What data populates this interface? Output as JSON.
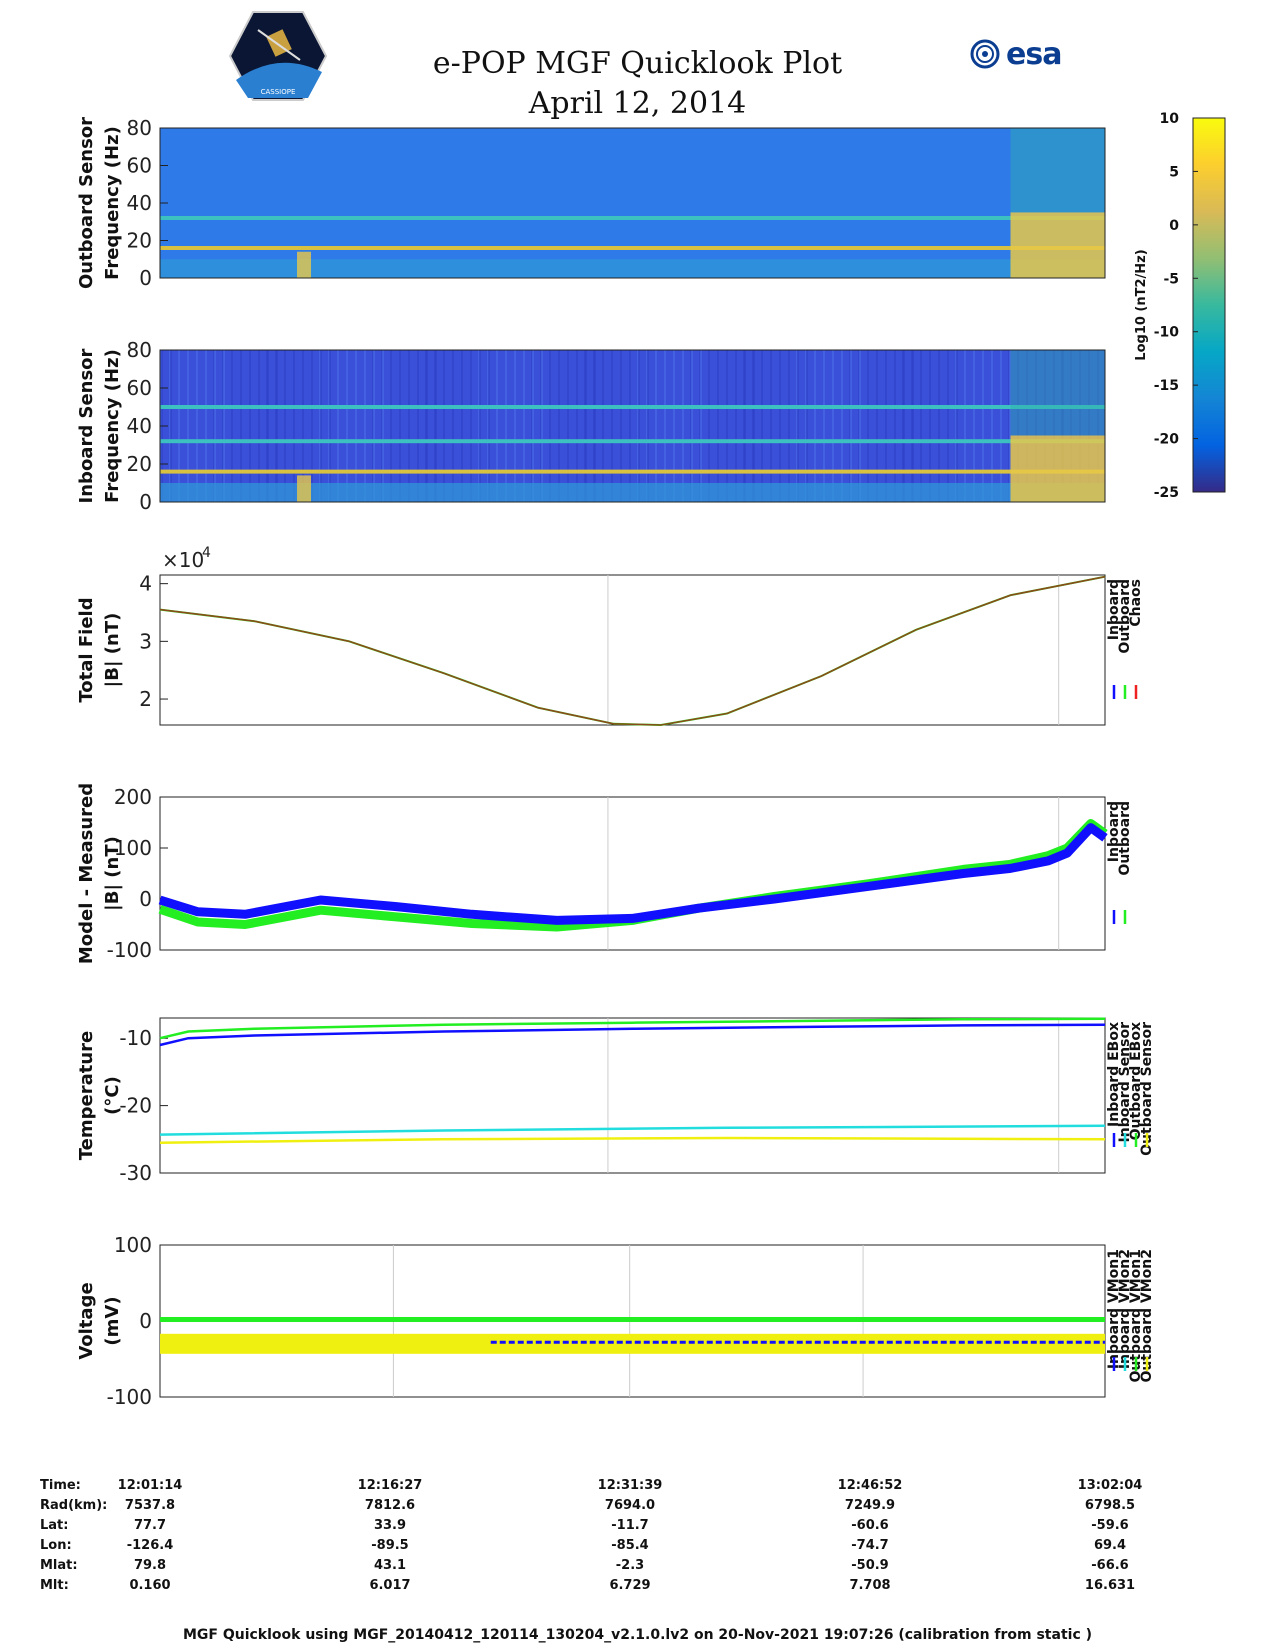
{
  "title": {
    "line1": "e-POP MGF Quicklook Plot",
    "line2": "April 12, 2014"
  },
  "logos": {
    "left": "cassiope-mission-logo",
    "left_caption": "CASSIOPE",
    "right_text": "esa"
  },
  "colorbar": {
    "label": "Log10 (nT2/Hz)",
    "ticks": [
      10,
      5,
      0,
      -5,
      -10,
      -15,
      -20,
      -25
    ],
    "range": [
      -25,
      10
    ]
  },
  "colors": {
    "blue": "#1010ff",
    "green": "#22ee22",
    "red": "#ee2222",
    "cyan": "#22dddd",
    "yellow": "#f0f010"
  },
  "chart_data": [
    {
      "type": "heatmap",
      "panel": "outboard-spectrogram",
      "ylabel_lines": [
        "Outboard Sensor",
        "Frequency (Hz)"
      ],
      "yticks": [
        0,
        20,
        40,
        60,
        80
      ],
      "ylim": [
        0,
        80
      ],
      "lines_hz": [
        16,
        32
      ],
      "bursts": [
        {
          "start_frac": 0.9,
          "end_frac": 1.0,
          "max_hz": 35
        }
      ]
    },
    {
      "type": "heatmap",
      "panel": "inboard-spectrogram",
      "ylabel_lines": [
        "Inboard Sensor",
        "Frequency (Hz)"
      ],
      "yticks": [
        0,
        20,
        40,
        60,
        80
      ],
      "ylim": [
        0,
        80
      ],
      "lines_hz": [
        16,
        32,
        50
      ],
      "bursts": [
        {
          "start_frac": 0.9,
          "end_frac": 1.0,
          "max_hz": 35
        }
      ]
    },
    {
      "type": "line",
      "panel": "total-field",
      "ylabel_lines": [
        "Total Field",
        "|B| (nT)"
      ],
      "exponent_label": "×10",
      "exponent_power": "4",
      "yticks": [
        2,
        3,
        4
      ],
      "ylim": [
        1.55,
        4.15
      ],
      "legend": [
        "Inboard",
        "Outboard",
        "Chaos"
      ],
      "legend_colors": [
        "#1010ff",
        "#22ee22",
        "#ee2222"
      ],
      "series": [
        {
          "name": "Total Field",
          "x": [
            0,
            0.1,
            0.2,
            0.3,
            0.4,
            0.48,
            0.53,
            0.6,
            0.7,
            0.8,
            0.9,
            1.0
          ],
          "y": [
            3.55,
            3.35,
            3.0,
            2.45,
            1.85,
            1.57,
            1.55,
            1.75,
            2.4,
            3.2,
            3.8,
            4.12
          ]
        }
      ]
    },
    {
      "type": "line",
      "panel": "model-measured",
      "ylabel_lines": [
        "Model - Measured",
        "|B| (nT)"
      ],
      "yticks": [
        -100,
        0,
        100,
        200
      ],
      "ylim": [
        -100,
        200
      ],
      "legend": [
        "Inboard",
        "Outboard"
      ],
      "legend_colors": [
        "#1010ff",
        "#22ee22"
      ],
      "series": [
        {
          "name": "Inboard",
          "color": "#1010ff",
          "x": [
            0,
            0.04,
            0.09,
            0.17,
            0.25,
            0.33,
            0.42,
            0.5,
            0.57,
            0.65,
            0.75,
            0.85,
            0.9,
            0.94,
            0.96,
            0.985,
            1.0
          ],
          "y": [
            -2,
            -25,
            -30,
            -2,
            -15,
            -30,
            -42,
            -38,
            -18,
            0,
            25,
            50,
            60,
            75,
            90,
            140,
            120
          ]
        },
        {
          "name": "Outboard",
          "color": "#22ee22",
          "x": [
            0,
            0.04,
            0.09,
            0.17,
            0.25,
            0.33,
            0.42,
            0.5,
            0.57,
            0.65,
            0.75,
            0.85,
            0.9,
            0.94,
            0.96,
            0.985,
            1.0
          ],
          "y": [
            -20,
            -45,
            -50,
            -22,
            -35,
            -48,
            -55,
            -42,
            -18,
            5,
            30,
            58,
            68,
            85,
            100,
            148,
            128
          ]
        }
      ]
    },
    {
      "type": "line",
      "panel": "temperature",
      "ylabel_lines": [
        "Temperature",
        "(°C)"
      ],
      "yticks": [
        -30,
        -20,
        -10
      ],
      "ylim": [
        -30,
        -7
      ],
      "legend": [
        "Inboard EBox",
        "Inboard Sensor",
        "Outboard EBox",
        "Outboard Sensor"
      ],
      "legend_colors": [
        "#1010ff",
        "#22dddd",
        "#22ee22",
        "#f0f010"
      ],
      "series": [
        {
          "name": "Inboard EBox",
          "color": "#1010ff",
          "x": [
            0,
            0.03,
            0.1,
            0.3,
            0.5,
            0.7,
            0.85,
            1.0
          ],
          "y": [
            -11,
            -10,
            -9.6,
            -9.0,
            -8.6,
            -8.3,
            -8.1,
            -8.0
          ]
        },
        {
          "name": "Inboard Sensor",
          "color": "#22dddd",
          "x": [
            0,
            0.3,
            0.6,
            1.0
          ],
          "y": [
            -24.3,
            -23.7,
            -23.3,
            -23.0
          ]
        },
        {
          "name": "Outboard EBox",
          "color": "#22ee22",
          "x": [
            0,
            0.03,
            0.1,
            0.3,
            0.5,
            0.7,
            0.85,
            1.0
          ],
          "y": [
            -10,
            -9,
            -8.6,
            -8.0,
            -7.7,
            -7.4,
            -7.2,
            -7.1
          ]
        },
        {
          "name": "Outboard Sensor",
          "color": "#f0f010",
          "x": [
            0,
            0.3,
            0.6,
            1.0
          ],
          "y": [
            -25.5,
            -25.0,
            -24.8,
            -25.0
          ]
        }
      ]
    },
    {
      "type": "line",
      "panel": "voltage",
      "ylabel_lines": [
        "Voltage",
        "(mV)"
      ],
      "yticks": [
        -100,
        0,
        100
      ],
      "ylim": [
        -100,
        100
      ],
      "legend": [
        "Inboard VMon1",
        "Inboard VMon2",
        "Outboard VMon1",
        "Outboard VMon2"
      ],
      "legend_colors": [
        "#1010ff",
        "#22dddd",
        "#22ee22",
        "#f0f010"
      ],
      "series": [
        {
          "name": "Inboard VMon1",
          "color": "#1010ff",
          "x": [
            0,
            1
          ],
          "y": [
            -28,
            -28
          ]
        },
        {
          "name": "Inboard VMon2",
          "color": "#22dddd",
          "x": [
            0,
            1
          ],
          "y": [
            -25,
            -25
          ]
        },
        {
          "name": "Outboard VMon1",
          "color": "#22ee22",
          "x": [
            0,
            1
          ],
          "y": [
            2,
            2
          ]
        },
        {
          "name": "Outboard VMon2",
          "color": "#f0f010",
          "x": [
            0,
            1
          ],
          "y": [
            -30,
            -30
          ]
        }
      ]
    }
  ],
  "xticks": [
    "12:01:14",
    "12:16:27",
    "12:31:39",
    "12:46:52",
    "13:02:04"
  ],
  "info_rows": [
    {
      "label": "Time:",
      "values": [
        "12:01:14",
        "12:16:27",
        "12:31:39",
        "12:46:52",
        "13:02:04"
      ]
    },
    {
      "label": "Rad(km):",
      "values": [
        "7537.8",
        "7812.6",
        "7694.0",
        "7249.9",
        "6798.5"
      ]
    },
    {
      "label": "Lat:",
      "values": [
        "77.7",
        "33.9",
        "-11.7",
        "-60.6",
        "-59.6"
      ]
    },
    {
      "label": "Lon:",
      "values": [
        "-126.4",
        "-89.5",
        "-85.4",
        "-74.7",
        "69.4"
      ]
    },
    {
      "label": "Mlat:",
      "values": [
        "79.8",
        "43.1",
        "-2.3",
        "-50.9",
        "-66.6"
      ]
    },
    {
      "label": "Mlt:",
      "values": [
        "0.160",
        "6.017",
        "6.729",
        "7.708",
        "16.631"
      ]
    }
  ],
  "footer": "MGF Quicklook using MGF_20140412_120114_130204_v2.1.0.lv2 on 20-Nov-2021 19:07:26 (calibration from static )"
}
